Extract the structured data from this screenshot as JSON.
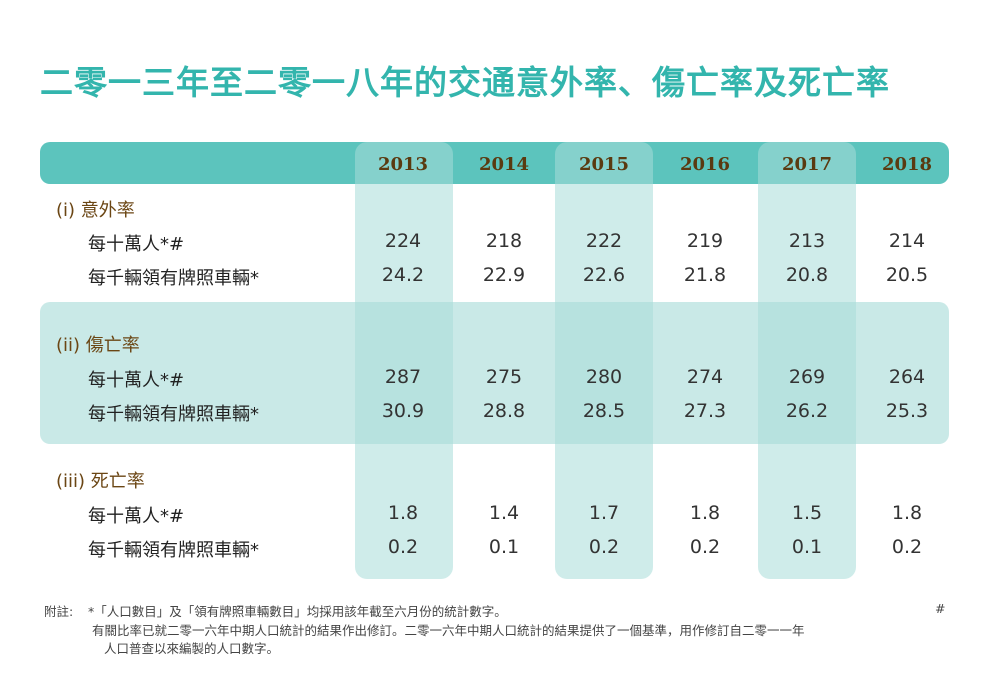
{
  "title": "二零一三年至二零一八年的交通意外率、傷亡率及死亡率",
  "years": [
    "2013",
    "2014",
    "2015",
    "2016",
    "2017",
    "2018"
  ],
  "sections": [
    {
      "label": "(i) 意外率",
      "rows": [
        {
          "label": "每十萬人*#",
          "values": [
            "224",
            "218",
            "222",
            "219",
            "213",
            "214"
          ]
        },
        {
          "label": "每千輛領有牌照車輛*",
          "values": [
            "24.2",
            "22.9",
            "22.6",
            "21.8",
            "20.8",
            "20.5"
          ]
        }
      ]
    },
    {
      "label": "(ii) 傷亡率",
      "rows": [
        {
          "label": "每十萬人*#",
          "values": [
            "287",
            "275",
            "280",
            "274",
            "269",
            "264"
          ]
        },
        {
          "label": "每千輛領有牌照車輛*",
          "values": [
            "30.9",
            "28.8",
            "28.5",
            "27.3",
            "26.2",
            "25.3"
          ]
        }
      ]
    },
    {
      "label": "(iii) 死亡率",
      "rows": [
        {
          "label": "每十萬人*#",
          "values": [
            "1.8",
            "1.4",
            "1.7",
            "1.8",
            "1.5",
            "1.8"
          ]
        },
        {
          "label": "每千輛領有牌照車輛*",
          "values": [
            "0.2",
            "0.1",
            "0.2",
            "0.2",
            "0.1",
            "0.2"
          ]
        }
      ]
    }
  ],
  "notes": {
    "prefix": "附註:",
    "star": "*「人口數目」及「領有牌照車輛數目」均採用該年截至六月份的統計數字。",
    "hash": "#",
    "hash_line1": "有關比率已就二零一六年中期人口統計的結果作出修訂。二零一六年中期人口統計的結果提供了一個基準，用作修訂自二零一一年",
    "hash_line2": "人口普查以來編製的人口數字。"
  }
}
